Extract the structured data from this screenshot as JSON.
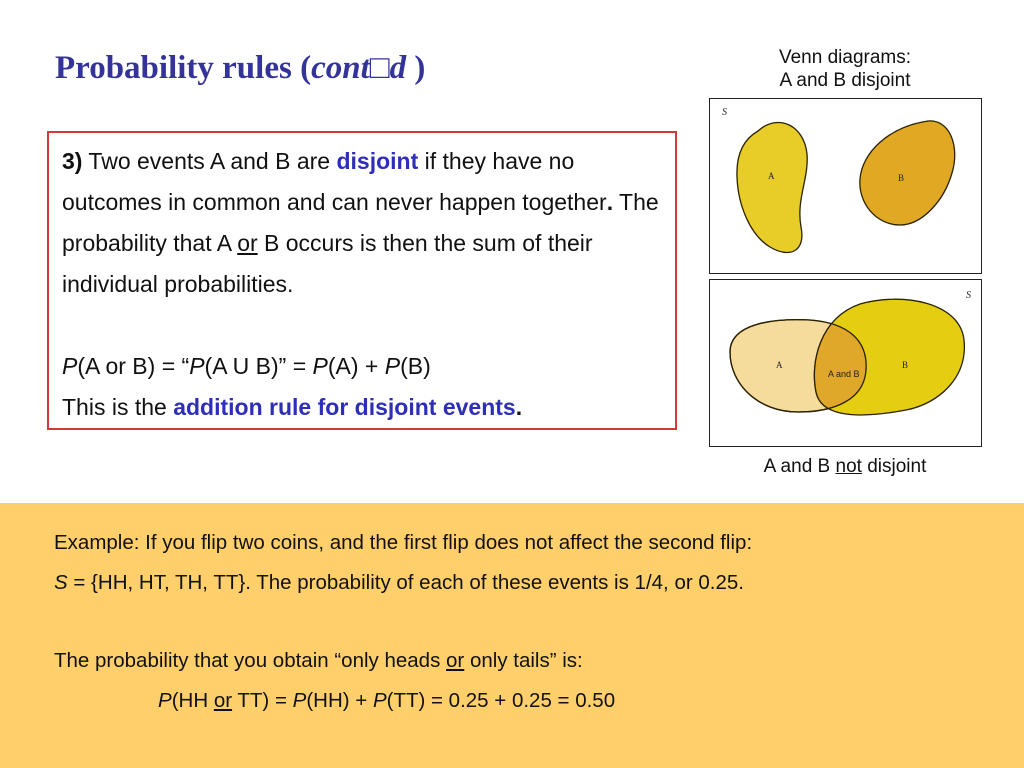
{
  "title": {
    "main": "Probability rules (",
    "italic": "cont□d",
    "close": " )"
  },
  "venn": {
    "caption_line1": "Venn diagrams:",
    "caption_line2": "A and B disjoint",
    "disjoint": {
      "sample_label": "S",
      "a_label": "A",
      "b_label": "B"
    },
    "overlap": {
      "sample_label": "S",
      "a_label": "A",
      "b_label": "B",
      "intersection_label": "A and B"
    },
    "bottom_caption_pre": "A and B ",
    "bottom_caption_underlined": "not",
    "bottom_caption_post": " disjoint",
    "colors": {
      "a_fill": "#e8cd28",
      "b_fill": "#e0a823",
      "overlap_a_fill": "#f5dc9c",
      "overlap_b_fill": "#e5ce12",
      "intersection_fill": "#dfa82a",
      "stroke": "#2a2200"
    }
  },
  "rule": {
    "number": "3)",
    "text1": " Two events A and B are ",
    "keyword": "disjoint",
    "text2": " if they have no outcomes in common and can never happen together",
    "bold_period": ".",
    "text3": " The probability that A ",
    "or": "or",
    "text4": " B occurs is then the sum of their individual probabilities.",
    "formula": {
      "p1": "P",
      "t1": "(A or B) = “",
      "p2": "P",
      "t2": "(A U B)” = ",
      "p3": "P",
      "t3": "(A) + ",
      "p4": "P",
      "t4": "(B)"
    },
    "addition_pre": "This is the ",
    "addition_rule": "addition rule for disjoint events",
    "addition_post": "."
  },
  "example": {
    "line1": "Example: If you flip two coins, and the first flip does not affect the second flip:",
    "line2_s": "S",
    "line2_rest": " = {HH, HT, TH, TT}. The probability of each of these events is 1/4, or 0.25.",
    "line3_pre": "The probability that you obtain “only heads ",
    "line3_or": "or",
    "line3_post": " only tails” is:",
    "line4": {
      "p1": "P",
      "t1": "(HH ",
      "or": "or",
      "t2": " TT) = ",
      "p2": "P",
      "t3": "(HH) + ",
      "p3": "P",
      "t4": "(TT) = 0.25 + 0.25 = 0.50"
    }
  },
  "colors": {
    "title": "#33339a",
    "accent_blue": "#2e2eb8",
    "rule_border": "#d23a3a",
    "example_background": "#ffcf6b"
  }
}
